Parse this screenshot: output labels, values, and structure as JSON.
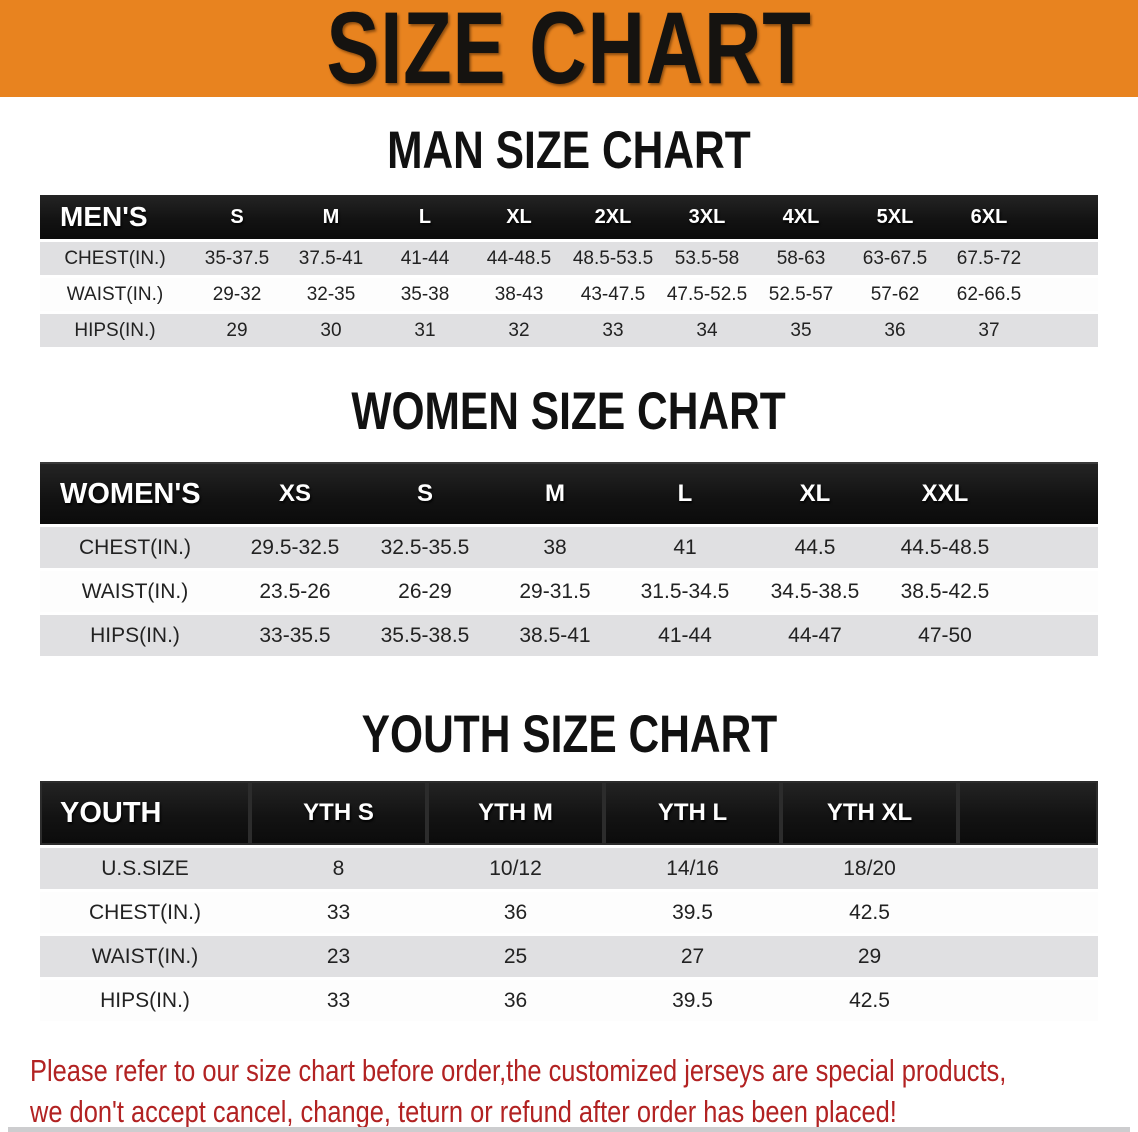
{
  "banner": {
    "title": "SIZE CHART",
    "bg_color": "#e8831f",
    "text_color": "#151310"
  },
  "sections": [
    {
      "heading": "MAN SIZE CHART",
      "table": {
        "header_label": "MEN'S",
        "columns": [
          "S",
          "M",
          "L",
          "XL",
          "2XL",
          "3XL",
          "4XL",
          "5XL",
          "6XL"
        ],
        "rows": [
          {
            "label": "CHEST(IN.)",
            "shade": true,
            "values": [
              "35-37.5",
              "37.5-41",
              "41-44",
              "44-48.5",
              "48.5-53.5",
              "53.5-58",
              "58-63",
              "63-67.5",
              "67.5-72"
            ]
          },
          {
            "label": "WAIST(IN.)",
            "shade": false,
            "values": [
              "29-32",
              "32-35",
              "35-38",
              "38-43",
              "43-47.5",
              "47.5-52.5",
              "52.5-57",
              "57-62",
              "62-66.5"
            ]
          },
          {
            "label": "HIPS(IN.)",
            "shade": true,
            "values": [
              "29",
              "30",
              "31",
              "32",
              "33",
              "34",
              "35",
              "36",
              "37"
            ]
          }
        ]
      }
    },
    {
      "heading": "WOMEN SIZE CHART",
      "table": {
        "header_label": "WOMEN'S",
        "columns": [
          "XS",
          "S",
          "M",
          "L",
          "XL",
          "XXL"
        ],
        "rows": [
          {
            "label": "CHEST(IN.)",
            "shade": true,
            "values": [
              "29.5-32.5",
              "32.5-35.5",
              "38",
              "41",
              "44.5",
              "44.5-48.5"
            ]
          },
          {
            "label": "WAIST(IN.)",
            "shade": false,
            "values": [
              "23.5-26",
              "26-29",
              "29-31.5",
              "31.5-34.5",
              "34.5-38.5",
              "38.5-42.5"
            ]
          },
          {
            "label": "HIPS(IN.)",
            "shade": true,
            "values": [
              "33-35.5",
              "35.5-38.5",
              "38.5-41",
              "41-44",
              "44-47",
              "47-50"
            ]
          }
        ]
      }
    },
    {
      "heading": "YOUTH SIZE CHART",
      "table": {
        "header_label": "YOUTH",
        "columns": [
          "YTH S",
          "YTH M",
          "YTH L",
          "YTH XL"
        ],
        "rows": [
          {
            "label": "U.S.SIZE",
            "shade": true,
            "values": [
              "8",
              "10/12",
              "14/16",
              "18/20"
            ]
          },
          {
            "label": "CHEST(IN.)",
            "shade": false,
            "values": [
              "33",
              "36",
              "39.5",
              "42.5"
            ]
          },
          {
            "label": "WAIST(IN.)",
            "shade": true,
            "values": [
              "23",
              "25",
              "27",
              "29"
            ]
          },
          {
            "label": "HIPS(IN.)",
            "shade": false,
            "values": [
              "33",
              "36",
              "39.5",
              "42.5"
            ]
          }
        ]
      }
    }
  ],
  "disclaimer": {
    "line1": "Please refer to our size chart before order,the customized jerseys are special products,",
    "line2": "we don't accept cancel, change, teturn or refund after order has been placed!",
    "text_color": "#b22222"
  }
}
